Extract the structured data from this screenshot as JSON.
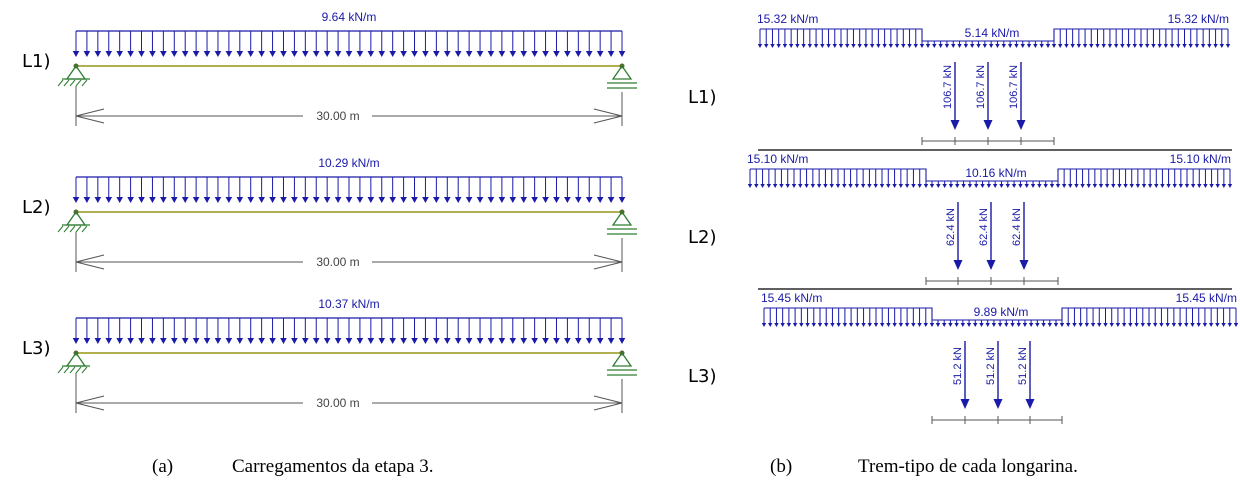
{
  "colors": {
    "load": "#1a1aa8",
    "beam": "#b0b050",
    "support": "#2e7d32",
    "dimension": "#555555",
    "separator": "#000000"
  },
  "left_panel": {
    "caption_tag": "(a)",
    "caption_text": "Carregamentos da etapa 3.",
    "beams": [
      {
        "label": "L1)",
        "load": "9.64 kN/m",
        "span": "30.00 m"
      },
      {
        "label": "L2)",
        "load": "10.29 kN/m",
        "span": "30.00 m"
      },
      {
        "label": "L3)",
        "load": "10.37 kN/m",
        "span": "30.00 m"
      }
    ]
  },
  "right_panel": {
    "caption_tag": "(b)",
    "caption_text": "Trem-tipo de cada longarina.",
    "trains": [
      {
        "label": "L1)",
        "outer_load": "15.32 kN/m",
        "inner_load": "5.14 kN/m",
        "point_loads": [
          "106.7 kN",
          "106.7 kN",
          "106.7 kN"
        ]
      },
      {
        "label": "L2)",
        "outer_load": "15.10 kN/m",
        "inner_load": "10.16 kN/m",
        "point_loads": [
          "62.4 kN",
          "62.4 kN",
          "62.4 kN"
        ]
      },
      {
        "label": "L3)",
        "outer_load": "15.45 kN/m",
        "inner_load": "9.89 kN/m",
        "point_loads": [
          "51.2 kN",
          "51.2 kN",
          "51.2 kN"
        ]
      }
    ]
  }
}
